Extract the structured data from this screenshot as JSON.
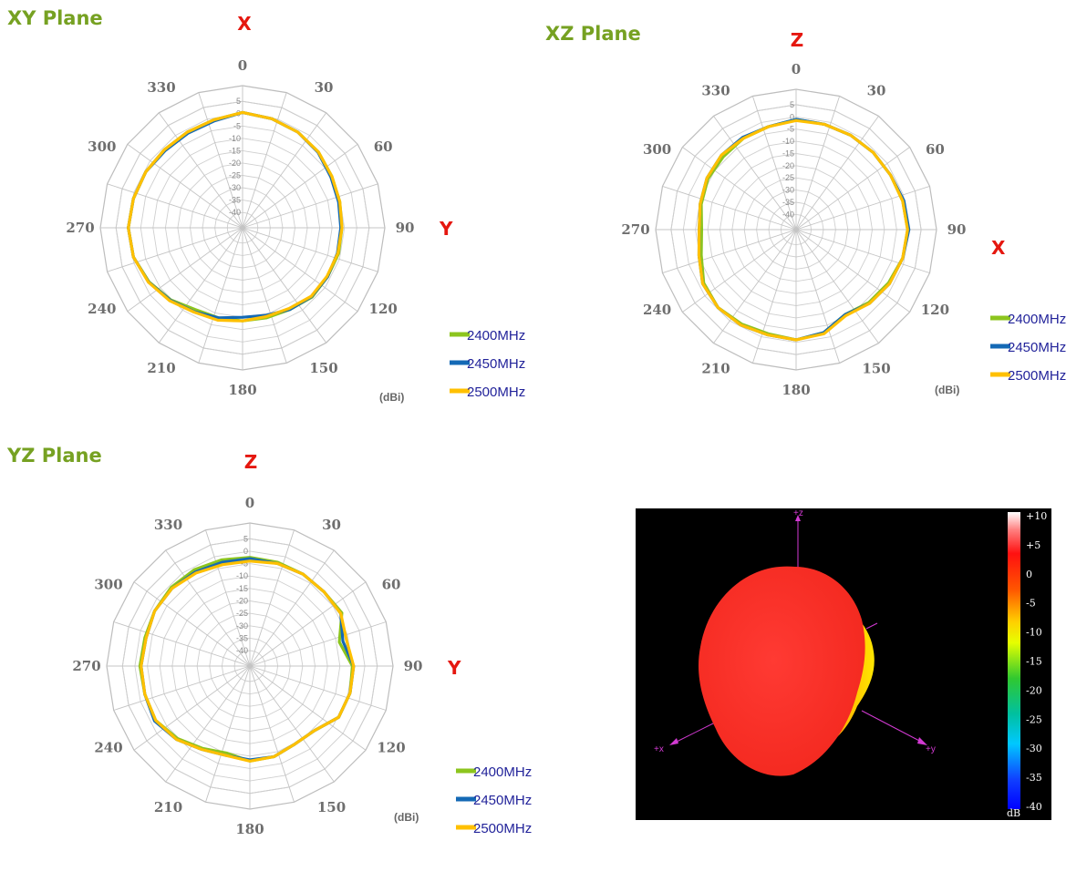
{
  "chart_data": [
    {
      "type": "polar-line",
      "title": "XY Plane",
      "top_axis_label": "X",
      "right_axis_label": "Y",
      "unit": "(dBi)",
      "radial_ticks": [
        "5",
        "0",
        "-5",
        "-10",
        "-15",
        "-20",
        "-25",
        "-30",
        "-35",
        "-40"
      ],
      "rlim": [
        -40,
        5
      ],
      "angle_ticks": [
        "0",
        "30",
        "60",
        "90",
        "120",
        "150",
        "180",
        "210",
        "240",
        "270",
        "300",
        "330"
      ],
      "angles": [
        0,
        15,
        30,
        45,
        60,
        75,
        90,
        105,
        120,
        135,
        150,
        165,
        180,
        195,
        210,
        225,
        240,
        255,
        270,
        285,
        300,
        315,
        330,
        345
      ],
      "series": [
        {
          "name": "2400MHz",
          "color": "#8cc51e",
          "values": [
            0.5,
            -0.5,
            -1.5,
            -2.8,
            -4.5,
            -5.5,
            -6,
            -6,
            -6.5,
            -6.5,
            -8,
            -8.5,
            -8.5,
            -8.5,
            -8,
            -5,
            -2.5,
            -0.5,
            0,
            -0.5,
            -1,
            -1.5,
            -1.5,
            -1
          ]
        },
        {
          "name": "2450MHz",
          "color": "#1469b5",
          "values": [
            0.5,
            -0.5,
            -1.5,
            -3,
            -5,
            -6,
            -6.5,
            -6.5,
            -6.5,
            -6.8,
            -8,
            -9.5,
            -10,
            -8.5,
            -7,
            -4.8,
            -2.3,
            -0.5,
            0,
            -0.5,
            -1,
            -2,
            -2,
            -1.5
          ]
        },
        {
          "name": "2500MHz",
          "color": "#ffc000",
          "values": [
            0.5,
            -0.5,
            -1.5,
            -2.8,
            -4.5,
            -5.5,
            -6,
            -6.3,
            -6.8,
            -7,
            -8.5,
            -9,
            -8.5,
            -7.5,
            -6.8,
            -4.5,
            -2.2,
            -0.5,
            0,
            -0.5,
            -1,
            -1.5,
            -1.5,
            -1
          ]
        }
      ]
    },
    {
      "type": "polar-line",
      "title": "XZ Plane",
      "top_axis_label": "Z",
      "right_axis_label": "X",
      "unit": "(dBi)",
      "radial_ticks": [
        "5",
        "0",
        "-5",
        "-10",
        "-15",
        "-20",
        "-25",
        "-30",
        "-35",
        "-40"
      ],
      "rlim": [
        -40,
        5
      ],
      "angle_ticks": [
        "0",
        "30",
        "60",
        "90",
        "120",
        "150",
        "180",
        "210",
        "240",
        "270",
        "300",
        "330"
      ],
      "angles": [
        0,
        15,
        30,
        45,
        60,
        75,
        90,
        105,
        120,
        135,
        150,
        165,
        180,
        195,
        210,
        225,
        240,
        255,
        270,
        285,
        300,
        315,
        330,
        345
      ],
      "series": [
        {
          "name": "2400MHz",
          "color": "#8cc51e",
          "values": [
            -1,
            -1.5,
            -1.5,
            -1.5,
            -1.5,
            -1,
            -0.5,
            -1,
            -2.5,
            -4,
            -6,
            -2.5,
            -1,
            -2,
            -1.5,
            -1,
            -2.5,
            -6,
            -7.5,
            -6,
            -4.5,
            -4,
            -3,
            -2.5
          ]
        },
        {
          "name": "2450MHz",
          "color": "#1469b5",
          "values": [
            -1,
            -1.5,
            -1.5,
            -1.5,
            -1.5,
            -0.5,
            0,
            -1,
            -2,
            -3.5,
            -6,
            -2.5,
            -1,
            -1.5,
            -1,
            -1,
            -2,
            -5,
            -6.5,
            -5.5,
            -4,
            -3,
            -2.5,
            -2.5
          ]
        },
        {
          "name": "2500MHz",
          "color": "#ffc000",
          "values": [
            -1.5,
            -1.5,
            -1.5,
            -1.5,
            -1.5,
            -1,
            -0.5,
            -1,
            -2,
            -3.5,
            -5.5,
            -2,
            -1,
            -1.5,
            -1,
            -1,
            -2,
            -5,
            -6.5,
            -5.5,
            -4,
            -3,
            -3,
            -2.5
          ]
        }
      ]
    },
    {
      "type": "polar-line",
      "title": "YZ Plane",
      "top_axis_label": "Z",
      "right_axis_label": "Y",
      "unit": "(dBi)",
      "radial_ticks": [
        "5",
        "0",
        "-5",
        "-10",
        "-15",
        "-20",
        "-25",
        "-30",
        "-35",
        "-40"
      ],
      "rlim": [
        -40,
        5
      ],
      "angle_ticks": [
        "0",
        "30",
        "60",
        "90",
        "120",
        "150",
        "180",
        "210",
        "240",
        "270",
        "300",
        "330"
      ],
      "angles": [
        0,
        15,
        30,
        45,
        60,
        75,
        90,
        105,
        120,
        135,
        150,
        165,
        180,
        195,
        210,
        225,
        240,
        255,
        270,
        285,
        300,
        315,
        330,
        345
      ],
      "series": [
        {
          "name": "2400MHz",
          "color": "#8cc51e",
          "values": [
            -2.5,
            -3,
            -3.5,
            -4,
            -3.5,
            -9,
            -5,
            -4.5,
            -5,
            -9.5,
            -10,
            -8.5,
            -8,
            -10,
            -8,
            -5,
            -2.5,
            -2.5,
            -2,
            -2.5,
            -2,
            -1.5,
            -1.5,
            -2
          ]
        },
        {
          "name": "2450MHz",
          "color": "#1469b5",
          "values": [
            -3,
            -3.5,
            -3.5,
            -4,
            -4,
            -7.5,
            -4.5,
            -4.5,
            -5,
            -9.5,
            -10,
            -8.5,
            -8.5,
            -9,
            -7.5,
            -4.5,
            -2,
            -2.5,
            -2.5,
            -3,
            -2,
            -2,
            -2.5,
            -3
          ]
        },
        {
          "name": "2500MHz",
          "color": "#ffc000",
          "values": [
            -4,
            -3.5,
            -3.5,
            -4,
            -4,
            -6,
            -4.5,
            -4.5,
            -5,
            -9.5,
            -10,
            -8.5,
            -8,
            -9,
            -7.5,
            -4.5,
            -2.5,
            -2.5,
            -2.5,
            -3,
            -2,
            -2,
            -3,
            -4
          ]
        }
      ]
    }
  ],
  "plot3d": {
    "axis_labels": [
      "+z",
      "+x",
      "+y"
    ],
    "colorbar_ticks": [
      "+10",
      "+5",
      "0",
      "-5",
      "-10",
      "-15",
      "-20",
      "-25",
      "-30",
      "-35",
      "-40"
    ],
    "colorbar_unit": "dB",
    "colorbar_colors": [
      "#ffffff",
      "#ff2020",
      "#ff6a00",
      "#ffe000",
      "#e6ff00",
      "#22c822",
      "#00c8c8",
      "#1010ff"
    ]
  }
}
